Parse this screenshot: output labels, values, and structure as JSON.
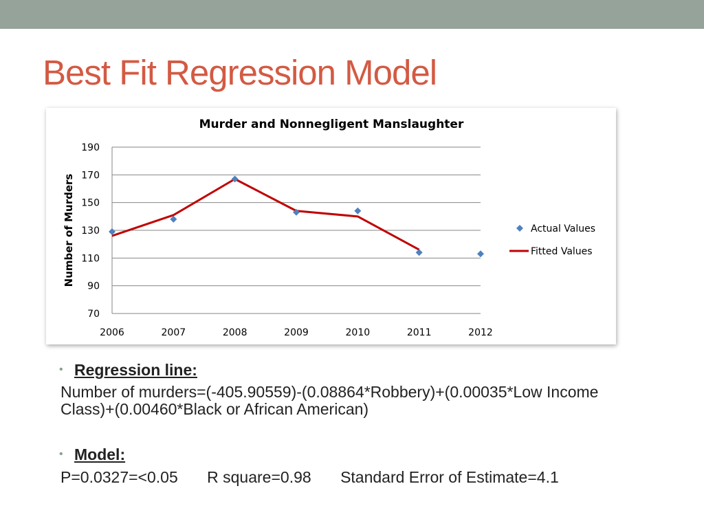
{
  "slide": {
    "title": "Best Fit Regression Model",
    "bullets": [
      {
        "heading": "Regression line:",
        "body": "Number of murders=(-405.90559)-(0.08864*Robbery)+(0.00035*Low Income Class)+(0.00460*Black or African American)"
      },
      {
        "heading": "Model:",
        "stats": [
          "P=0.0327=<0.05",
          "R square=0.98",
          "Standard Error of Estimate=4.1"
        ]
      }
    ]
  },
  "colors": {
    "title": "#d35a43",
    "top_band": "#95a39a",
    "actual_marker": "#4f81bd",
    "fitted_line": "#c00000",
    "grid": "#868686"
  },
  "chart_data": {
    "type": "line",
    "title": "Murder and Nonnegligent Manslaughter",
    "xlabel": "",
    "ylabel": "Number of Murders",
    "categories": [
      "2006",
      "2007",
      "2008",
      "2009",
      "2010",
      "2011",
      "2012"
    ],
    "ylim": [
      70,
      190
    ],
    "yticks": [
      190,
      170,
      150,
      130,
      110,
      90,
      70
    ],
    "grid": true,
    "legend": "right",
    "series": [
      {
        "name": "Actual Values",
        "kind": "scatter",
        "marker": "diamond",
        "values": [
          129,
          138,
          167,
          143,
          144,
          114,
          113
        ]
      },
      {
        "name": "Fitted Values",
        "kind": "line",
        "values": [
          126,
          141,
          167,
          144,
          140,
          116,
          null
        ]
      }
    ]
  }
}
